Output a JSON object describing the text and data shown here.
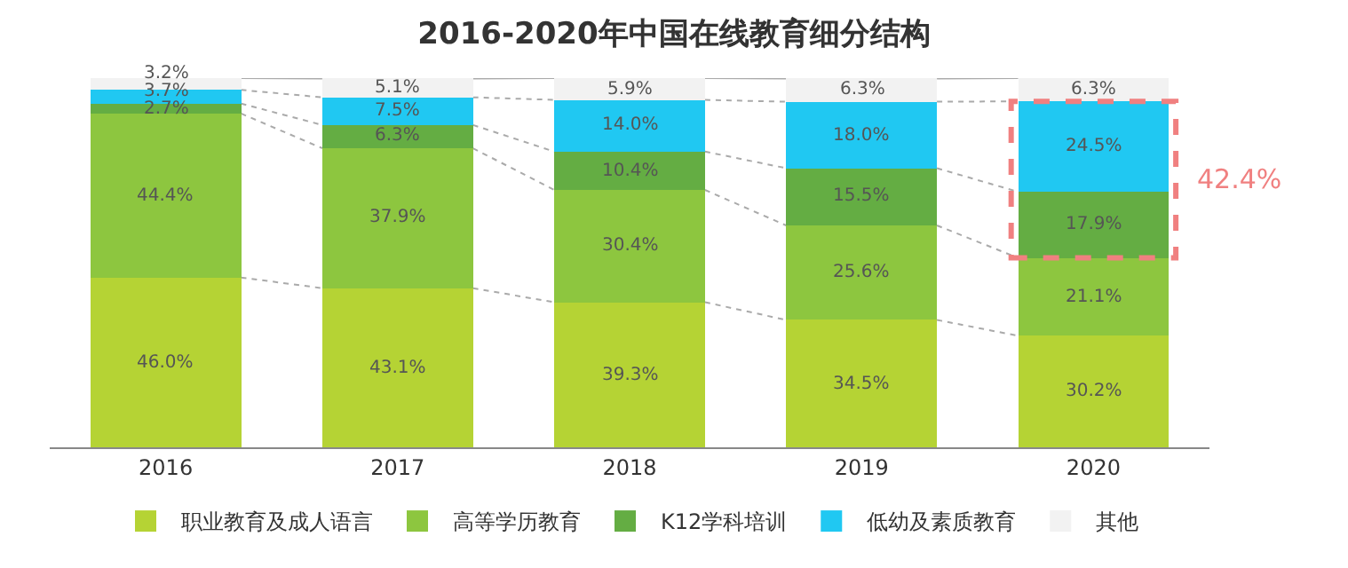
{
  "chart_data": {
    "type": "bar",
    "title": "2016-2020年中国在线教育细分结构",
    "stacked": true,
    "categories": [
      "2016",
      "2017",
      "2018",
      "2019",
      "2020"
    ],
    "series": [
      {
        "name": "职业教育及成人语言",
        "color": "#b5d334",
        "values": [
          46.0,
          43.1,
          39.3,
          34.5,
          30.2
        ],
        "value_labels": [
          "46.0%",
          "43.1%",
          "39.3%",
          "34.5%",
          "30.2%"
        ]
      },
      {
        "name": "高等学历教育",
        "color": "#8dc63f",
        "values": [
          44.4,
          37.9,
          30.4,
          25.6,
          21.1
        ],
        "value_labels": [
          "44.4%",
          "37.9%",
          "30.4%",
          "25.6%",
          "21.1%"
        ]
      },
      {
        "name": "K12学科培训",
        "color": "#64ad43",
        "values": [
          2.7,
          6.3,
          10.4,
          15.5,
          17.9
        ],
        "value_labels": [
          "2.7%",
          "6.3%",
          "10.4%",
          "15.5%",
          "17.9%"
        ]
      },
      {
        "name": "低幼及素质教育",
        "color": "#20c8f2",
        "values": [
          3.7,
          7.5,
          14.0,
          18.0,
          24.5
        ],
        "value_labels": [
          "3.7%",
          "7.5%",
          "14.0%",
          "18.0%",
          "24.5%"
        ]
      },
      {
        "name": "其他",
        "color": "#f2f2f2",
        "values": [
          3.2,
          5.1,
          5.9,
          6.3,
          6.3
        ],
        "value_labels": [
          "3.2%",
          "5.1%",
          "5.9%",
          "6.3%",
          "6.3%"
        ]
      }
    ],
    "annotations": [
      "42.4%"
    ],
    "legend": "bottom",
    "tick_labels": "x"
  }
}
